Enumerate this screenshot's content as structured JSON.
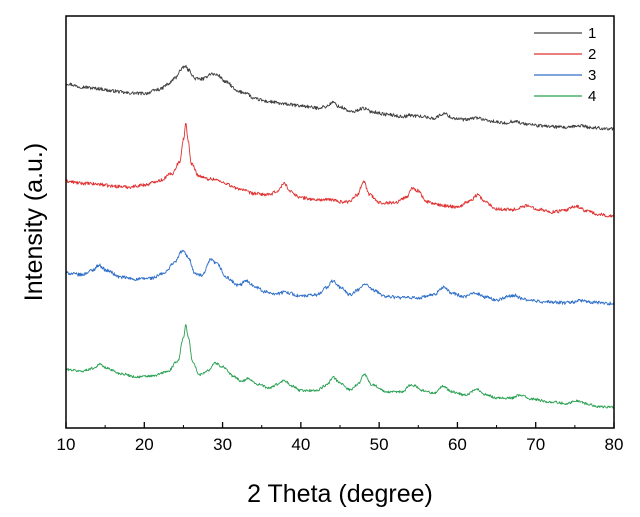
{
  "chart_data": {
    "type": "line",
    "title": "",
    "xlabel": "2 Theta (degree)",
    "ylabel": "Intensity (a.u.)",
    "xlim": [
      10,
      80
    ],
    "ylim": [
      0,
      1
    ],
    "x_ticks": [
      10,
      20,
      30,
      40,
      50,
      60,
      70,
      80
    ],
    "x_tick_labels": [
      "10",
      "20",
      "30",
      "40",
      "50",
      "60",
      "70",
      "80"
    ],
    "y_ticks_shown": false,
    "grid": false,
    "legend_position": "top-right",
    "series": [
      {
        "name": "1",
        "color": "#404040",
        "points": [
          [
            10,
            0.836
          ],
          [
            12,
            0.828
          ],
          [
            14,
            0.824
          ],
          [
            16,
            0.818
          ],
          [
            18,
            0.813
          ],
          [
            20,
            0.812
          ],
          [
            22,
            0.822
          ],
          [
            23,
            0.834
          ],
          [
            24,
            0.85
          ],
          [
            24.6,
            0.868
          ],
          [
            25.2,
            0.878
          ],
          [
            25.7,
            0.868
          ],
          [
            26.5,
            0.848
          ],
          [
            27.5,
            0.847
          ],
          [
            28.5,
            0.86
          ],
          [
            29.3,
            0.857
          ],
          [
            30.5,
            0.839
          ],
          [
            32,
            0.816
          ],
          [
            33,
            0.814
          ],
          [
            34,
            0.799
          ],
          [
            36,
            0.792
          ],
          [
            38,
            0.786
          ],
          [
            40,
            0.782
          ],
          [
            42,
            0.777
          ],
          [
            43.2,
            0.78
          ],
          [
            44.1,
            0.79
          ],
          [
            45,
            0.779
          ],
          [
            46.5,
            0.767
          ],
          [
            48,
            0.776
          ],
          [
            49,
            0.768
          ],
          [
            51,
            0.761
          ],
          [
            53,
            0.756
          ],
          [
            54,
            0.759
          ],
          [
            55,
            0.757
          ],
          [
            57,
            0.752
          ],
          [
            58.3,
            0.763
          ],
          [
            59.5,
            0.752
          ],
          [
            61,
            0.748
          ],
          [
            62.5,
            0.753
          ],
          [
            64,
            0.745
          ],
          [
            66,
            0.74
          ],
          [
            67.3,
            0.745
          ],
          [
            68.5,
            0.738
          ],
          [
            71,
            0.733
          ],
          [
            74,
            0.729
          ],
          [
            75.8,
            0.734
          ],
          [
            77,
            0.729
          ],
          [
            80,
            0.726
          ]
        ],
        "noise": 0.004
      },
      {
        "name": "2",
        "color": "#e03030",
        "points": [
          [
            10,
            0.599
          ],
          [
            12,
            0.594
          ],
          [
            14,
            0.592
          ],
          [
            16,
            0.587
          ],
          [
            18,
            0.585
          ],
          [
            20,
            0.59
          ],
          [
            22,
            0.601
          ],
          [
            23.5,
            0.617
          ],
          [
            24.5,
            0.645
          ],
          [
            25,
            0.7
          ],
          [
            25.3,
            0.737
          ],
          [
            25.6,
            0.699
          ],
          [
            26,
            0.641
          ],
          [
            27,
            0.612
          ],
          [
            28,
            0.605
          ],
          [
            29,
            0.604
          ],
          [
            30,
            0.596
          ],
          [
            32,
            0.581
          ],
          [
            34,
            0.569
          ],
          [
            36,
            0.566
          ],
          [
            37,
            0.575
          ],
          [
            37.9,
            0.594
          ],
          [
            38.7,
            0.573
          ],
          [
            40,
            0.559
          ],
          [
            42,
            0.554
          ],
          [
            44,
            0.554
          ],
          [
            45,
            0.549
          ],
          [
            46,
            0.549
          ],
          [
            47.2,
            0.565
          ],
          [
            48,
            0.599
          ],
          [
            48.8,
            0.566
          ],
          [
            50,
            0.547
          ],
          [
            52,
            0.547
          ],
          [
            53.5,
            0.56
          ],
          [
            54.2,
            0.582
          ],
          [
            55,
            0.576
          ],
          [
            56,
            0.549
          ],
          [
            58,
            0.54
          ],
          [
            60,
            0.537
          ],
          [
            61.5,
            0.55
          ],
          [
            62.6,
            0.566
          ],
          [
            63.5,
            0.549
          ],
          [
            65,
            0.532
          ],
          [
            67,
            0.53
          ],
          [
            68.8,
            0.539
          ],
          [
            70.5,
            0.531
          ],
          [
            72,
            0.524
          ],
          [
            73.5,
            0.527
          ],
          [
            75.2,
            0.538
          ],
          [
            76.5,
            0.527
          ],
          [
            78,
            0.518
          ],
          [
            80,
            0.514
          ]
        ],
        "noise": 0.004
      },
      {
        "name": "3",
        "color": "#2f6fc9",
        "points": [
          [
            10,
            0.376
          ],
          [
            12,
            0.372
          ],
          [
            13.3,
            0.382
          ],
          [
            14.2,
            0.395
          ],
          [
            15.2,
            0.382
          ],
          [
            17,
            0.366
          ],
          [
            19,
            0.361
          ],
          [
            21,
            0.364
          ],
          [
            22.5,
            0.375
          ],
          [
            23.8,
            0.401
          ],
          [
            24.9,
            0.43
          ],
          [
            25.6,
            0.415
          ],
          [
            26.5,
            0.374
          ],
          [
            27.4,
            0.37
          ],
          [
            28.5,
            0.408
          ],
          [
            29.3,
            0.398
          ],
          [
            30.5,
            0.365
          ],
          [
            32,
            0.346
          ],
          [
            33.1,
            0.357
          ],
          [
            34,
            0.345
          ],
          [
            35.5,
            0.33
          ],
          [
            37,
            0.326
          ],
          [
            38,
            0.33
          ],
          [
            40,
            0.32
          ],
          [
            42,
            0.323
          ],
          [
            43.3,
            0.341
          ],
          [
            44.1,
            0.357
          ],
          [
            45,
            0.342
          ],
          [
            46.3,
            0.323
          ],
          [
            47.4,
            0.336
          ],
          [
            48.2,
            0.35
          ],
          [
            49.2,
            0.334
          ],
          [
            51,
            0.319
          ],
          [
            53,
            0.316
          ],
          [
            55,
            0.316
          ],
          [
            57,
            0.323
          ],
          [
            58.2,
            0.342
          ],
          [
            59.3,
            0.327
          ],
          [
            61,
            0.318
          ],
          [
            62.2,
            0.329
          ],
          [
            63.5,
            0.318
          ],
          [
            65,
            0.311
          ],
          [
            67.2,
            0.322
          ],
          [
            68.5,
            0.312
          ],
          [
            71,
            0.306
          ],
          [
            74,
            0.304
          ],
          [
            75.8,
            0.309
          ],
          [
            77,
            0.305
          ],
          [
            80,
            0.302
          ]
        ],
        "noise": 0.004
      },
      {
        "name": "4",
        "color": "#27a050",
        "points": [
          [
            10,
            0.142
          ],
          [
            12,
            0.138
          ],
          [
            13.5,
            0.145
          ],
          [
            14.3,
            0.155
          ],
          [
            15.2,
            0.145
          ],
          [
            17,
            0.132
          ],
          [
            19,
            0.124
          ],
          [
            21,
            0.126
          ],
          [
            23,
            0.137
          ],
          [
            24.3,
            0.163
          ],
          [
            25,
            0.22
          ],
          [
            25.3,
            0.25
          ],
          [
            25.6,
            0.221
          ],
          [
            26.2,
            0.16
          ],
          [
            27,
            0.129
          ],
          [
            28.2,
            0.14
          ],
          [
            29,
            0.158
          ],
          [
            30,
            0.149
          ],
          [
            31.5,
            0.124
          ],
          [
            32.5,
            0.113
          ],
          [
            33.3,
            0.12
          ],
          [
            34.5,
            0.106
          ],
          [
            36,
            0.097
          ],
          [
            37,
            0.106
          ],
          [
            37.9,
            0.115
          ],
          [
            38.8,
            0.102
          ],
          [
            40,
            0.091
          ],
          [
            42,
            0.091
          ],
          [
            43.3,
            0.104
          ],
          [
            44.1,
            0.123
          ],
          [
            45,
            0.109
          ],
          [
            46.3,
            0.093
          ],
          [
            47.4,
            0.108
          ],
          [
            48.1,
            0.131
          ],
          [
            49,
            0.106
          ],
          [
            51,
            0.087
          ],
          [
            53,
            0.088
          ],
          [
            53.9,
            0.104
          ],
          [
            54.6,
            0.102
          ],
          [
            55.5,
            0.091
          ],
          [
            57,
            0.085
          ],
          [
            58.2,
            0.101
          ],
          [
            59.3,
            0.088
          ],
          [
            61,
            0.08
          ],
          [
            62.5,
            0.094
          ],
          [
            63.5,
            0.082
          ],
          [
            65,
            0.073
          ],
          [
            67,
            0.073
          ],
          [
            68,
            0.08
          ],
          [
            69.5,
            0.07
          ],
          [
            72,
            0.063
          ],
          [
            74,
            0.06
          ],
          [
            75.3,
            0.066
          ],
          [
            76.5,
            0.059
          ],
          [
            78,
            0.052
          ],
          [
            80,
            0.05
          ]
        ],
        "noise": 0.003
      }
    ]
  }
}
